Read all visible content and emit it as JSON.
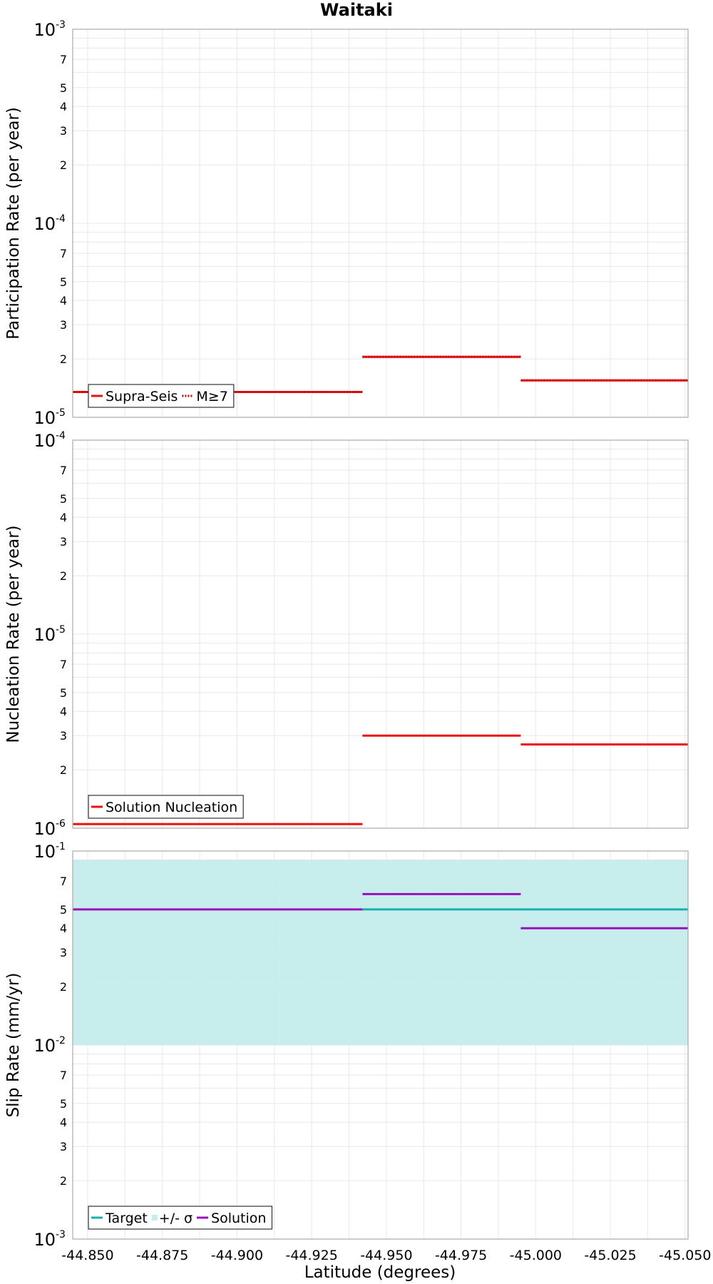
{
  "figure": {
    "title": "Waitaki",
    "xlabel": "Latitude (degrees)",
    "x_ticks": [
      "-44.850",
      "-44.875",
      "-44.900",
      "-44.925",
      "-44.950",
      "-44.975",
      "-45.000",
      "-45.025",
      "-45.050"
    ]
  },
  "colors": {
    "red": "#ee1111",
    "teal": "#1aafaf",
    "purple": "#9911bb",
    "band": "#c3ecec",
    "grid": "#e8e8e8",
    "frame": "#aaaaaa"
  },
  "chart_data": [
    {
      "type": "line",
      "ylabel": "Participation Rate (per year)",
      "yscale": "log",
      "ylim": [
        1e-05,
        0.001
      ],
      "xlim": [
        -44.845,
        -45.051
      ],
      "legend": {
        "position": "bottom-left",
        "entries": [
          "Supra-Seis",
          "M≥7"
        ]
      },
      "series": [
        {
          "name": "Supra-Seis",
          "style": "solid",
          "color": "#ee1111",
          "segments": [
            {
              "x": [
                -44.845,
                -44.942
              ],
              "y": 1.35e-05
            },
            {
              "x": [
                -44.942,
                -44.995
              ],
              "y": 2.05e-05
            },
            {
              "x": [
                -44.995,
                -45.051
              ],
              "y": 1.55e-05
            }
          ]
        },
        {
          "name": "M≥7",
          "style": "dotted",
          "color": "#ee1111",
          "segments": [
            {
              "x": [
                -44.845,
                -44.942
              ],
              "y": 1.35e-05
            },
            {
              "x": [
                -44.942,
                -44.995
              ],
              "y": 2.05e-05
            },
            {
              "x": [
                -44.995,
                -45.051
              ],
              "y": 1.55e-05
            }
          ]
        }
      ]
    },
    {
      "type": "line",
      "ylabel": "Nucleation Rate (per year)",
      "yscale": "log",
      "ylim": [
        1e-06,
        0.0001
      ],
      "xlim": [
        -44.845,
        -45.051
      ],
      "legend": {
        "position": "bottom-left",
        "entries": [
          "Solution Nucleation"
        ]
      },
      "series": [
        {
          "name": "Solution Nucleation",
          "style": "solid",
          "color": "#ee1111",
          "segments": [
            {
              "x": [
                -44.845,
                -44.942
              ],
              "y": 1.05e-06
            },
            {
              "x": [
                -44.942,
                -44.995
              ],
              "y": 3e-06
            },
            {
              "x": [
                -44.995,
                -45.051
              ],
              "y": 2.7e-06
            }
          ]
        }
      ]
    },
    {
      "type": "line",
      "ylabel": "Slip Rate (mm/yr)",
      "yscale": "log",
      "ylim": [
        0.001,
        0.1
      ],
      "xlim": [
        -44.845,
        -45.051
      ],
      "legend": {
        "position": "bottom-left",
        "entries": [
          "Target",
          "+/- σ",
          "Solution"
        ]
      },
      "band": {
        "name": "+/- σ",
        "color": "#c3ecec",
        "x": [
          -44.845,
          -45.051
        ],
        "y": [
          0.01,
          0.09
        ]
      },
      "series": [
        {
          "name": "Target",
          "style": "solid",
          "color": "#1aafaf",
          "segments": [
            {
              "x": [
                -44.942,
                -45.051
              ],
              "y": 0.05
            }
          ]
        },
        {
          "name": "Solution",
          "style": "solid",
          "color": "#9911bb",
          "segments": [
            {
              "x": [
                -44.845,
                -44.942
              ],
              "y": 0.05
            },
            {
              "x": [
                -44.942,
                -44.995
              ],
              "y": 0.06
            },
            {
              "x": [
                -44.995,
                -45.051
              ],
              "y": 0.04
            }
          ]
        }
      ]
    }
  ]
}
